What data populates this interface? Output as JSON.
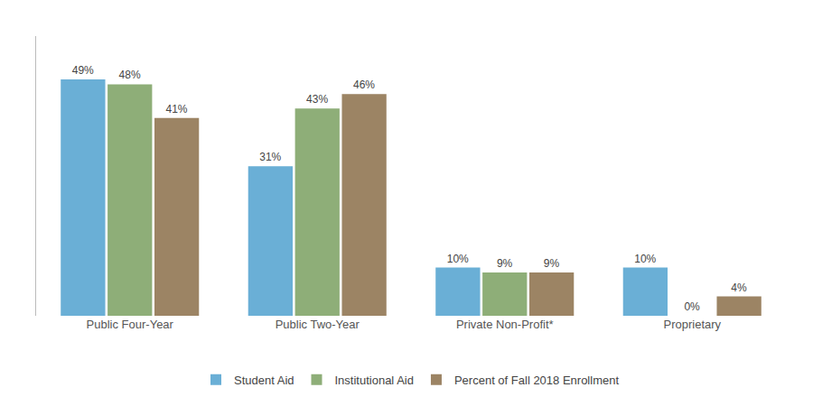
{
  "chart_data": {
    "type": "bar",
    "categories": [
      "Public Four-Year",
      "Public Two-Year",
      "Private Non-Profit*",
      "Proprietary"
    ],
    "series": [
      {
        "name": "Student Aid",
        "color": "#6AAFD6",
        "values": [
          49,
          31,
          10,
          10
        ],
        "value_labels": [
          "49%",
          "31%",
          "10%",
          "10%"
        ]
      },
      {
        "name": "Institutional Aid",
        "color": "#8EAE78",
        "values": [
          48,
          43,
          9,
          0
        ],
        "value_labels": [
          "48%",
          "43%",
          "9%",
          "0%"
        ]
      },
      {
        "name": "Percent of Fall 2018 Enrollment",
        "color": "#9C8464",
        "values": [
          41,
          46,
          9,
          4
        ],
        "value_labels": [
          "41%",
          "46%",
          "9%",
          "4%"
        ]
      }
    ],
    "ylim": [
      0,
      58
    ],
    "grid": false,
    "legend": "bottom",
    "data_labels": true,
    "tick_labels": "x"
  }
}
